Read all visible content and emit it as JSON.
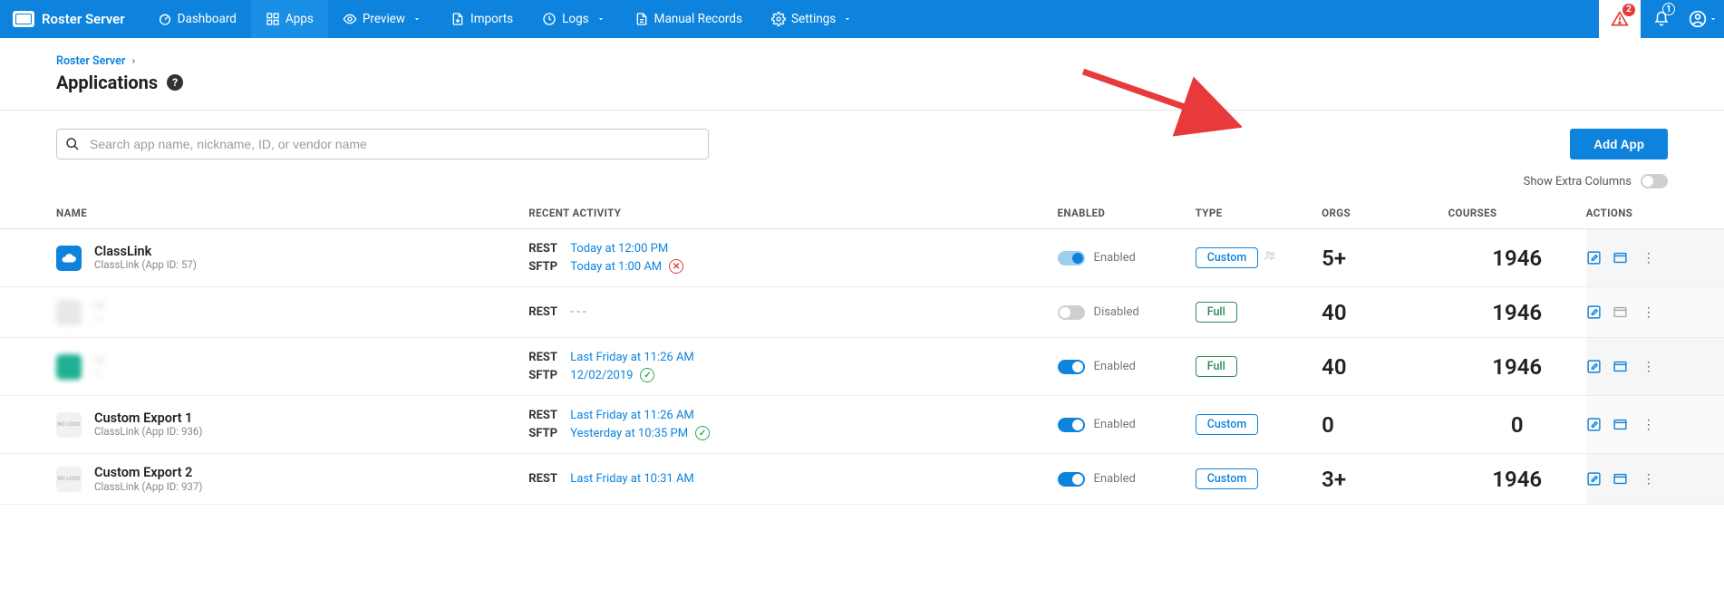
{
  "brand": {
    "title": "Roster Server"
  },
  "nav": {
    "items": [
      {
        "id": "dashboard",
        "label": "Dashboard",
        "icon": "dashboard",
        "active": false,
        "hasChevron": false
      },
      {
        "id": "apps",
        "label": "Apps",
        "icon": "apps",
        "active": true,
        "hasChevron": false
      },
      {
        "id": "preview",
        "label": "Preview",
        "icon": "eye",
        "active": false,
        "hasChevron": true
      },
      {
        "id": "imports",
        "label": "Imports",
        "icon": "import",
        "active": false,
        "hasChevron": false
      },
      {
        "id": "logs",
        "label": "Logs",
        "icon": "clock",
        "active": false,
        "hasChevron": true
      },
      {
        "id": "manual",
        "label": "Manual Records",
        "icon": "file",
        "active": false,
        "hasChevron": false
      },
      {
        "id": "settings",
        "label": "Settings",
        "icon": "gear",
        "active": false,
        "hasChevron": true
      }
    ],
    "alertBadge": "2",
    "bellBadge": "1"
  },
  "breadcrumb": {
    "root": "Roster Server"
  },
  "page": {
    "title": "Applications"
  },
  "search": {
    "placeholder": "Search app name, nickname, ID, or vendor name"
  },
  "buttons": {
    "addApp": "Add App"
  },
  "extraColumns": {
    "label": "Show Extra Columns",
    "on": false
  },
  "columns": {
    "name": "NAME",
    "activity": "RECENT ACTIVITY",
    "enabled": "ENABLED",
    "type": "TYPE",
    "orgs": "ORGS",
    "courses": "COURSES",
    "actions": "ACTIONS"
  },
  "enabledLabels": {
    "on": "Enabled",
    "off": "Disabled"
  },
  "typeLabels": {
    "custom": "Custom",
    "full": "Full"
  },
  "rows": [
    {
      "logo": {
        "bg": "#0d83dd",
        "text": "",
        "kind": "cloud"
      },
      "name": "ClassLink",
      "sub": "ClassLink (App ID: 57)",
      "blurred": false,
      "activity": [
        {
          "proto": "REST",
          "time": "Today at 12:00 PM",
          "status": ""
        },
        {
          "proto": "SFTP",
          "time": "Today at 1:00 AM",
          "status": "err"
        }
      ],
      "enabled": true,
      "togglePale": true,
      "type": "custom",
      "typeExtraIcon": true,
      "orgs": "5+",
      "courses": "1946",
      "actionsMuted": false
    },
    {
      "logo": {
        "bg": "#e8e8e8",
        "text": "",
        "kind": "square"
      },
      "name": "—",
      "sub": "—",
      "blurred": true,
      "activity": [
        {
          "proto": "REST",
          "time": "- - -",
          "status": "",
          "muted": true
        }
      ],
      "enabled": false,
      "togglePale": false,
      "type": "full",
      "typeExtraIcon": false,
      "orgs": "40",
      "courses": "1946",
      "actionsMuted": true
    },
    {
      "logo": {
        "bg": "#1fb093",
        "text": "",
        "kind": "square"
      },
      "name": "—",
      "sub": "—",
      "blurred": true,
      "activity": [
        {
          "proto": "REST",
          "time": "Last Friday at 11:26 AM",
          "status": ""
        },
        {
          "proto": "SFTP",
          "time": "12/02/2019",
          "status": "ok"
        }
      ],
      "enabled": true,
      "togglePale": false,
      "type": "full",
      "typeExtraIcon": false,
      "orgs": "40",
      "courses": "1946",
      "actionsMuted": false
    },
    {
      "logo": {
        "bg": "#f1f1f1",
        "text": "",
        "kind": "nologo"
      },
      "name": "Custom Export 1",
      "sub": "ClassLink (App ID: 936)",
      "blurred": false,
      "activity": [
        {
          "proto": "REST",
          "time": "Last Friday at 11:26 AM",
          "status": ""
        },
        {
          "proto": "SFTP",
          "time": "Yesterday at 10:35 PM",
          "status": "ok"
        }
      ],
      "enabled": true,
      "togglePale": false,
      "type": "custom",
      "typeExtraIcon": false,
      "orgs": "0",
      "courses": "0",
      "actionsMuted": false
    },
    {
      "logo": {
        "bg": "#f1f1f1",
        "text": "",
        "kind": "nologo"
      },
      "name": "Custom Export 2",
      "sub": "ClassLink (App ID: 937)",
      "blurred": false,
      "activity": [
        {
          "proto": "REST",
          "time": "Last Friday at 10:31 AM",
          "status": ""
        }
      ],
      "enabled": true,
      "togglePale": false,
      "type": "custom",
      "typeExtraIcon": false,
      "orgs": "3+",
      "courses": "1946",
      "actionsMuted": false
    }
  ],
  "colors": {
    "brandBlue": "#0d83dd",
    "green": "#2b8a57",
    "okGreen": "#2fa84f",
    "errRed": "#e23b3b",
    "arrowRed": "#e83a3a"
  }
}
